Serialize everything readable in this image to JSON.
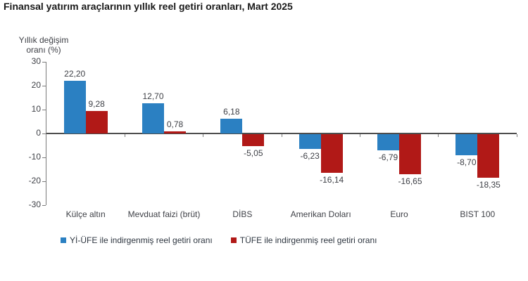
{
  "title": "Finansal yatırım araçlarının yıllık reel getiri oranları, Mart 2025",
  "y_axis_title": {
    "line1": "Yıllık değişim",
    "line2": "oranı (%)"
  },
  "chart_data": {
    "type": "bar",
    "title": "Finansal yatırım araçlarının yıllık reel getiri oranları, Mart 2025",
    "xlabel": "",
    "ylabel": "Yıllık değişim oranı (%)",
    "ylim": [
      -30,
      30
    ],
    "yticks": [
      30,
      20,
      10,
      0,
      -10,
      -20,
      -30
    ],
    "grid": false,
    "legend_position": "bottom",
    "decimal_separator": ",",
    "categories": [
      "Külçe altın",
      "Mevduat faizi (brüt)",
      "DİBS",
      "Amerikan Doları",
      "Euro",
      "BIST 100"
    ],
    "series": [
      {
        "name": "Yİ-ÜFE ile indirgenmiş reel getiri oranı",
        "color": "#2b80c2",
        "values": [
          22.2,
          12.7,
          6.18,
          -6.23,
          -6.79,
          -8.7
        ],
        "labels": [
          "22,20",
          "12,70",
          "6,18",
          "-6,23",
          "-6,79",
          "-8,70"
        ]
      },
      {
        "name": "TÜFE ile indirgenmiş reel getiri oranı",
        "color": "#b11917",
        "values": [
          9.28,
          0.78,
          -5.05,
          -16.14,
          -16.65,
          -18.35
        ],
        "labels": [
          "9,28",
          "0,78",
          "-5,05",
          "-16,14",
          "-16,65",
          "-18,35"
        ]
      }
    ]
  },
  "colors": {
    "series_blue": "#2b80c2",
    "series_red": "#b11917",
    "axis": "#7a7a7a",
    "zero_line": "#4d4d4d",
    "text": "#3f4147"
  }
}
